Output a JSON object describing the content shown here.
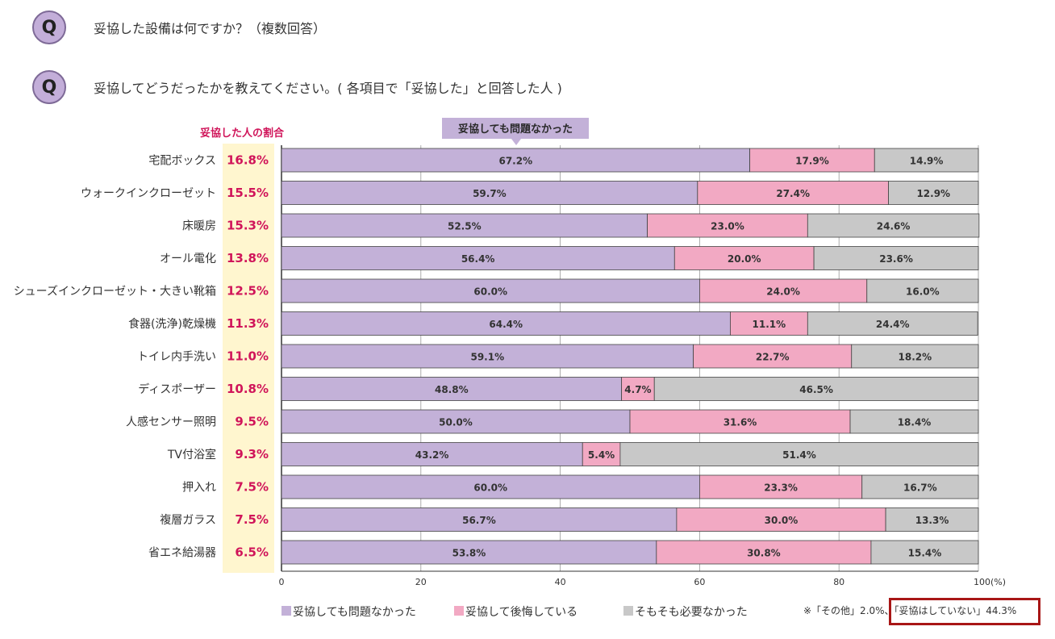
{
  "questions": [
    {
      "badge": "Q",
      "text": "妥協した設備は何ですか？（複数回答）"
    },
    {
      "badge": "Q",
      "text": "妥協してどうだったかを教えてください。( 各項目で「妥協した」と回答した人 )"
    }
  ],
  "footnote": {
    "part1": "※「その他」2.0%、",
    "part2": "「妥協はしていない」44.3%"
  },
  "chart_data": {
    "type": "bar",
    "orientation": "horizontal",
    "stacked": true,
    "rate_header": "妥協した人の割合",
    "callout": "妥協しても問題なかった",
    "categories": [
      "宅配ボックス",
      "ウォークインクローゼット",
      "床暖房",
      "オール電化",
      "シューズインクローゼット・大きい靴箱",
      "食器(洗浄)乾燥機",
      "トイレ内手洗い",
      "ディスポーザー",
      "人感センサー照明",
      "TV付浴室",
      "押入れ",
      "複層ガラス",
      "省エネ給湯器"
    ],
    "rates": [
      "16.8%",
      "15.5%",
      "15.3%",
      "13.8%",
      "12.5%",
      "11.3%",
      "11.0%",
      "10.8%",
      "9.5%",
      "9.3%",
      "7.5%",
      "7.5%",
      "6.5%"
    ],
    "series": [
      {
        "name": "妥協しても問題なかった",
        "color": "#c3b1d8",
        "values": [
          67.2,
          59.7,
          52.5,
          56.4,
          60.0,
          64.4,
          59.1,
          48.8,
          50.0,
          43.2,
          60.0,
          56.7,
          53.8
        ]
      },
      {
        "name": "妥協して後悔している",
        "color": "#f2a9c3",
        "values": [
          17.9,
          27.4,
          23.0,
          20.0,
          24.0,
          11.1,
          22.7,
          4.7,
          31.6,
          5.4,
          23.3,
          30.0,
          30.8
        ]
      },
      {
        "name": "そもそも必要なかった",
        "color": "#c8c8c8",
        "values": [
          14.9,
          12.9,
          24.6,
          23.6,
          16.0,
          24.4,
          18.2,
          46.5,
          18.4,
          51.4,
          16.7,
          13.3,
          15.4
        ]
      }
    ],
    "xlim": [
      0,
      100
    ],
    "xticks": [
      "0",
      "20",
      "40",
      "60",
      "80",
      "100(%)"
    ],
    "accent_color": "#d0155a",
    "rate_bg_color": "#fff6cf"
  }
}
